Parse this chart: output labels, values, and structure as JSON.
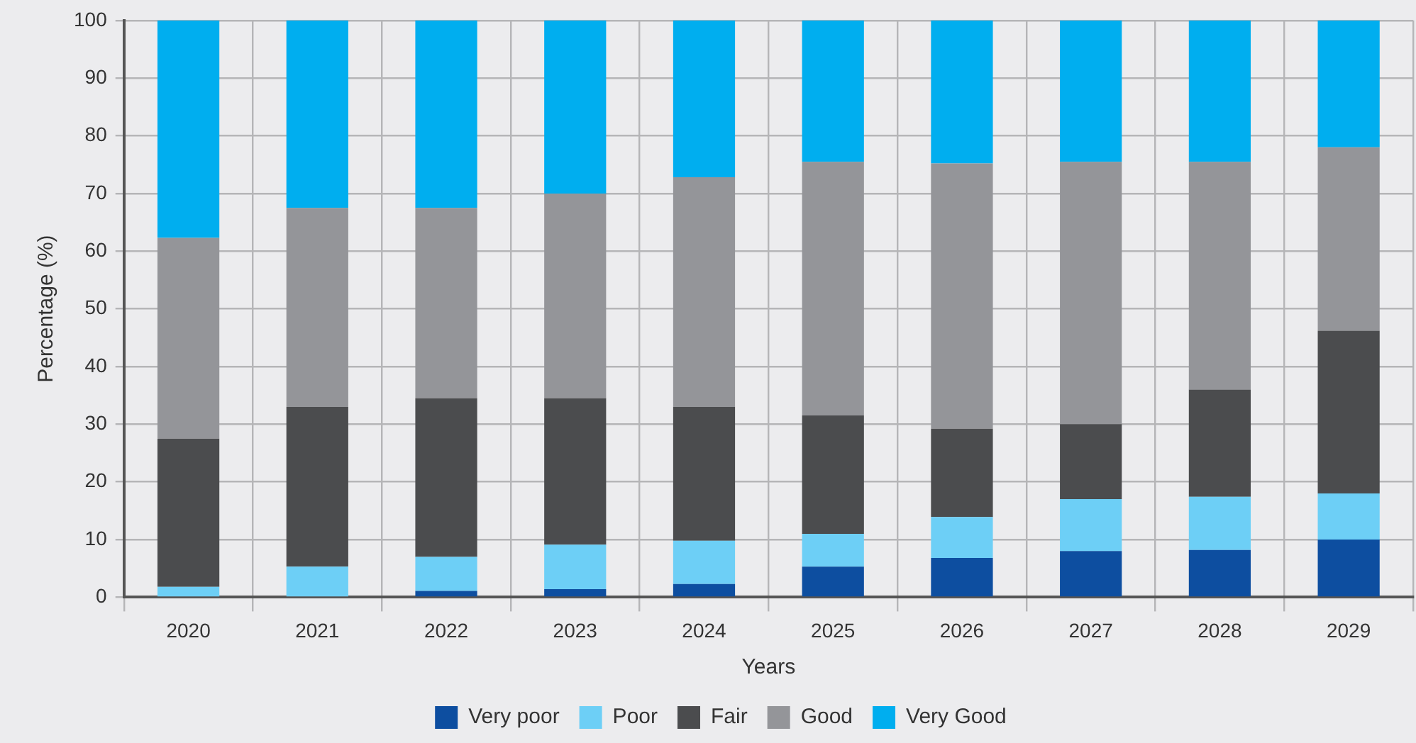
{
  "chart_data": {
    "type": "bar",
    "stacked": true,
    "xlabel": "Years",
    "ylabel": "Percentage (%)",
    "categories": [
      "2020",
      "2021",
      "2022",
      "2023",
      "2024",
      "2025",
      "2026",
      "2027",
      "2028",
      "2029"
    ],
    "series": [
      {
        "name": "Very poor",
        "color": "#0d4ea0",
        "values": [
          0,
          0,
          1.1,
          1.4,
          2.3,
          5.3,
          6.8,
          8,
          8.2,
          10
        ]
      },
      {
        "name": "Poor",
        "color": "#6dcff6",
        "values": [
          1.8,
          5.3,
          5.9,
          7.7,
          7.5,
          5.7,
          7.1,
          9,
          9.2,
          8
        ]
      },
      {
        "name": "Fair",
        "color": "#4b4c4e",
        "values": [
          25.7,
          27.7,
          27.5,
          25.4,
          23.2,
          20.5,
          15.3,
          13,
          18.6,
          28.2
        ]
      },
      {
        "name": "Good",
        "color": "#949599",
        "values": [
          34.8,
          34.5,
          33,
          35.5,
          39.8,
          44,
          46,
          45.5,
          39.5,
          31.8
        ]
      },
      {
        "name": "Very Good",
        "color": "#00aeef",
        "values": [
          37.7,
          32.5,
          32.5,
          30,
          27.2,
          24.5,
          24.8,
          24.5,
          24.5,
          22
        ]
      }
    ],
    "ylim": [
      0,
      100
    ],
    "yticks": [
      0,
      10,
      20,
      30,
      40,
      50,
      60,
      70,
      80,
      90,
      100
    ],
    "grid": true,
    "legend": "bottom"
  }
}
